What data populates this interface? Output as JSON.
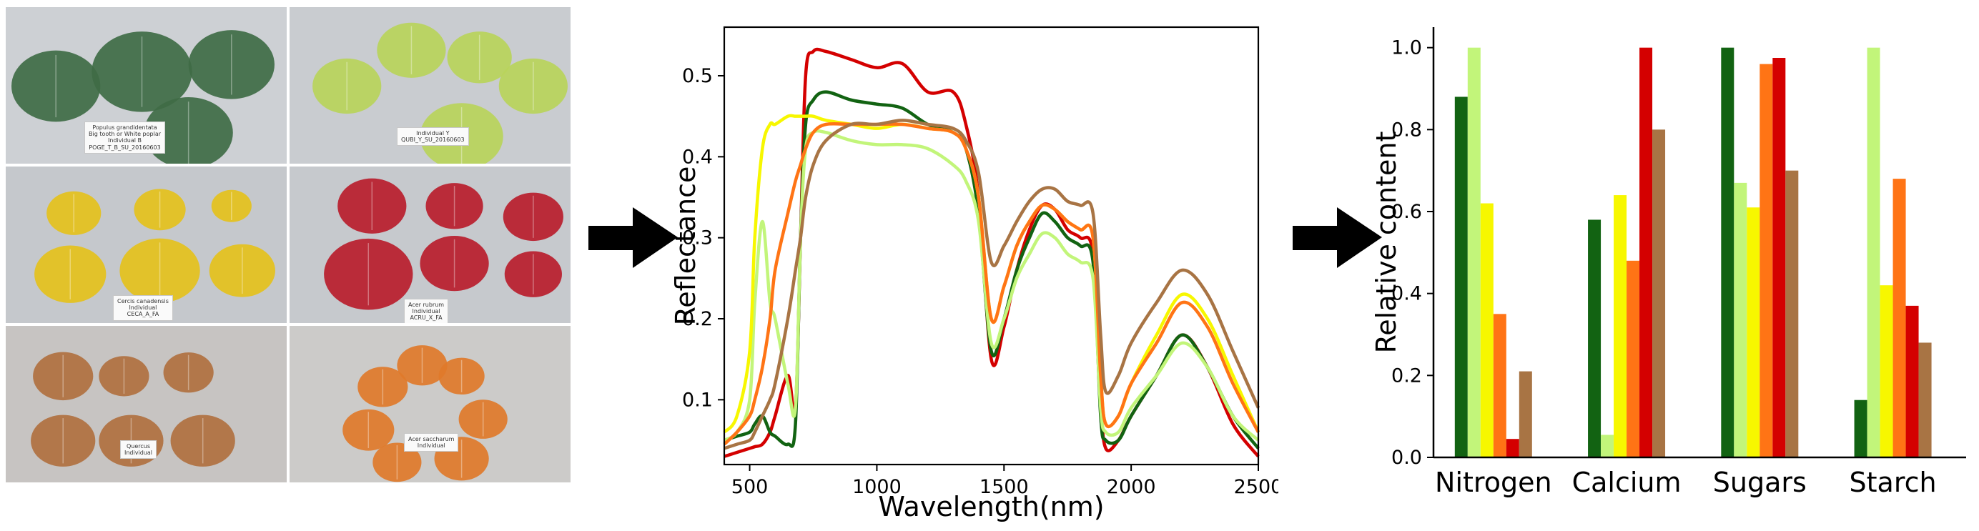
{
  "photo_panels": [
    {
      "name": "bigtooth-aspen-panel",
      "label": "Populus grandidentata\nBig tooth or White poplar\nIndividual B\nPOGE_T_B_SU_20160603",
      "leaf_color": "#3f6b45",
      "bg": "#cdd0d4"
    },
    {
      "name": "oak-yellowgreen-panel",
      "label": "Individual Y\nQUBI_Y_SU_20160603",
      "leaf_color": "#b8d45a",
      "bg": "#c9ccd0"
    },
    {
      "name": "yellow-leaf-panel",
      "label": "Cercis canadensis\nIndividual\nCECA_A_FA",
      "leaf_color": "#e4c11c",
      "bg": "#c5c8cc"
    },
    {
      "name": "red-maple-panel",
      "label": "Acer rubrum\nIndividual\nACRU_X_FA",
      "leaf_color": "#b81d2c",
      "bg": "#c6c9cd"
    },
    {
      "name": "brown-oak-panel",
      "label": "Quercus\nIndividual",
      "leaf_color": "#b07040",
      "bg": "#c7c4c2"
    },
    {
      "name": "orange-maple-panel",
      "label": "Acer saccharum\nIndividual",
      "leaf_color": "#e07a2a",
      "bg": "#cccbc9"
    }
  ],
  "colors": {
    "dark_green": "#126312",
    "light_green": "#c2f57a",
    "yellow": "#f7f700",
    "orange": "#ff7415",
    "red": "#d40000",
    "brown": "#a87444"
  },
  "chart_data": [
    {
      "type": "line",
      "xlabel": "Wavelength(nm)",
      "ylabel": "Reflectance",
      "xlim": [
        400,
        2500
      ],
      "ylim": [
        0.02,
        0.56
      ],
      "xticks": [
        500,
        1000,
        1500,
        2000,
        2500
      ],
      "yticks": [
        0.1,
        0.2,
        0.3,
        0.4,
        0.5
      ],
      "x": [
        400,
        450,
        500,
        520,
        550,
        580,
        600,
        650,
        680,
        700,
        720,
        750,
        800,
        900,
        1000,
        1100,
        1200,
        1300,
        1350,
        1400,
        1450,
        1500,
        1550,
        1600,
        1650,
        1700,
        1750,
        1800,
        1850,
        1880,
        1900,
        1950,
        2000,
        2100,
        2200,
        2300,
        2400,
        2500
      ],
      "series": [
        {
          "color": "#d40000",
          "values": [
            0.03,
            0.035,
            0.04,
            0.042,
            0.045,
            0.06,
            0.08,
            0.13,
            0.09,
            0.3,
            0.5,
            0.53,
            0.53,
            0.52,
            0.51,
            0.515,
            0.48,
            0.48,
            0.44,
            0.35,
            0.15,
            0.19,
            0.26,
            0.31,
            0.34,
            0.335,
            0.31,
            0.3,
            0.28,
            0.1,
            0.04,
            0.05,
            0.08,
            0.13,
            0.18,
            0.14,
            0.07,
            0.03
          ]
        },
        {
          "color": "#126312",
          "values": [
            0.05,
            0.055,
            0.06,
            0.07,
            0.08,
            0.06,
            0.055,
            0.045,
            0.07,
            0.3,
            0.44,
            0.47,
            0.48,
            0.47,
            0.465,
            0.46,
            0.44,
            0.43,
            0.41,
            0.33,
            0.16,
            0.2,
            0.26,
            0.3,
            0.33,
            0.32,
            0.3,
            0.29,
            0.27,
            0.08,
            0.05,
            0.05,
            0.08,
            0.13,
            0.18,
            0.14,
            0.08,
            0.04
          ]
        },
        {
          "color": "#c2f57a",
          "values": [
            0.05,
            0.06,
            0.1,
            0.22,
            0.32,
            0.22,
            0.2,
            0.12,
            0.09,
            0.3,
            0.41,
            0.43,
            0.43,
            0.42,
            0.415,
            0.415,
            0.41,
            0.39,
            0.37,
            0.32,
            0.17,
            0.2,
            0.25,
            0.28,
            0.305,
            0.3,
            0.28,
            0.27,
            0.25,
            0.09,
            0.06,
            0.06,
            0.09,
            0.13,
            0.17,
            0.14,
            0.08,
            0.05
          ]
        },
        {
          "color": "#f7f700",
          "values": [
            0.06,
            0.08,
            0.16,
            0.3,
            0.41,
            0.44,
            0.44,
            0.45,
            0.45,
            0.45,
            0.45,
            0.45,
            0.445,
            0.44,
            0.435,
            0.44,
            0.435,
            0.43,
            0.41,
            0.35,
            0.2,
            0.24,
            0.29,
            0.32,
            0.34,
            0.335,
            0.32,
            0.31,
            0.3,
            0.13,
            0.07,
            0.08,
            0.12,
            0.18,
            0.23,
            0.2,
            0.13,
            0.06
          ]
        },
        {
          "color": "#ff7415",
          "values": [
            0.045,
            0.06,
            0.08,
            0.1,
            0.14,
            0.2,
            0.26,
            0.33,
            0.37,
            0.39,
            0.41,
            0.43,
            0.44,
            0.44,
            0.44,
            0.44,
            0.435,
            0.43,
            0.41,
            0.35,
            0.2,
            0.24,
            0.29,
            0.32,
            0.34,
            0.335,
            0.32,
            0.31,
            0.3,
            0.13,
            0.07,
            0.08,
            0.12,
            0.17,
            0.22,
            0.19,
            0.12,
            0.06
          ]
        },
        {
          "color": "#a87444",
          "values": [
            0.04,
            0.045,
            0.05,
            0.06,
            0.08,
            0.1,
            0.12,
            0.2,
            0.26,
            0.3,
            0.35,
            0.39,
            0.42,
            0.44,
            0.44,
            0.445,
            0.44,
            0.435,
            0.42,
            0.38,
            0.27,
            0.29,
            0.32,
            0.345,
            0.36,
            0.36,
            0.345,
            0.34,
            0.33,
            0.18,
            0.11,
            0.13,
            0.17,
            0.22,
            0.26,
            0.23,
            0.16,
            0.09
          ]
        }
      ]
    },
    {
      "type": "bar",
      "ylabel": "Relative content",
      "categories": [
        "Nitrogen",
        "Calcium",
        "Sugars",
        "Starch"
      ],
      "ylim": [
        0,
        1.05
      ],
      "yticks": [
        "0.0",
        "0.2",
        "0.4",
        "0.6",
        "0.8",
        "1.0"
      ],
      "series_colors": [
        "#126312",
        "#c2f57a",
        "#f7f700",
        "#ff7415",
        "#d40000",
        "#a87444"
      ],
      "values": [
        [
          0.88,
          1.0,
          0.62,
          0.35,
          0.045,
          0.21
        ],
        [
          0.58,
          0.055,
          0.64,
          0.48,
          1.0,
          0.8
        ],
        [
          1.0,
          0.67,
          0.61,
          0.96,
          0.975,
          0.7
        ],
        [
          0.14,
          1.0,
          0.42,
          0.68,
          0.37,
          0.28
        ]
      ]
    }
  ]
}
